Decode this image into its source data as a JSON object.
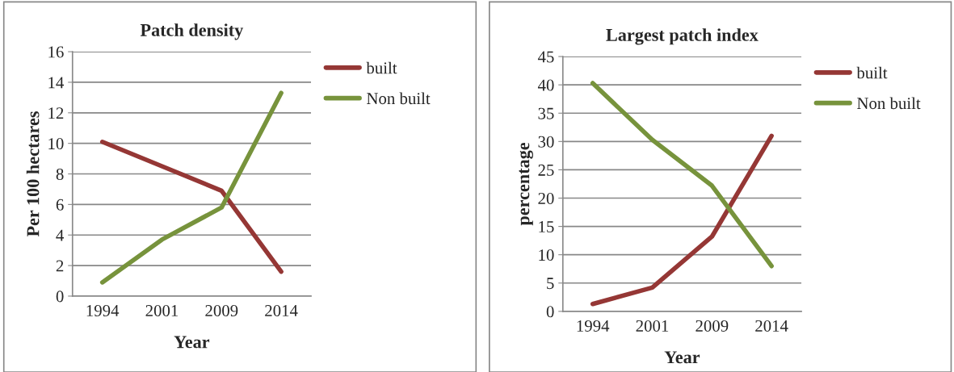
{
  "chart_data": [
    {
      "type": "line",
      "title": "Patch density",
      "xlabel": "Year",
      "ylabel": "Per 100 hectares",
      "categories": [
        "1994",
        "2001",
        "2009",
        "2014"
      ],
      "series": [
        {
          "name": "built",
          "color": "#953735",
          "values": [
            10.1,
            8.5,
            6.9,
            1.6
          ]
        },
        {
          "name": "Non built",
          "color": "#77933c",
          "values": [
            0.9,
            3.7,
            5.8,
            13.3
          ]
        }
      ],
      "ylim": [
        0,
        16
      ],
      "yticks": [
        0,
        2,
        4,
        6,
        8,
        10,
        12,
        14,
        16
      ],
      "grid": "y",
      "legend": "top right",
      "marker": "none",
      "line_style": "solid"
    },
    {
      "type": "line",
      "title": "Largest patch index",
      "xlabel": "Year",
      "ylabel": "percentage",
      "categories": [
        "1994",
        "2001",
        "2009",
        "2014"
      ],
      "series": [
        {
          "name": "built",
          "color": "#953735",
          "values": [
            1.3,
            4.2,
            13.2,
            31.0
          ]
        },
        {
          "name": "Non built",
          "color": "#77933c",
          "values": [
            40.3,
            30.3,
            22.2,
            8.0
          ]
        }
      ],
      "ylim": [
        0,
        45
      ],
      "yticks": [
        0,
        5,
        10,
        15,
        20,
        25,
        30,
        35,
        40,
        45
      ],
      "grid": "y",
      "legend": "top right",
      "marker": "none",
      "line_style": "solid"
    }
  ]
}
